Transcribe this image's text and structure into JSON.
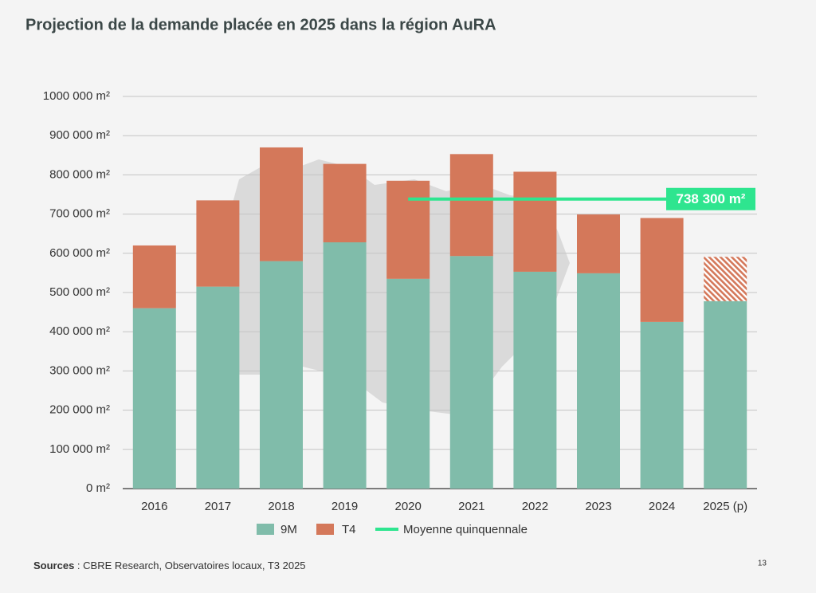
{
  "chart_data": {
    "type": "stacked-bar",
    "title": "Projection de la demande placée en 2025 dans la région AuRA",
    "categories": [
      "2016",
      "2017",
      "2018",
      "2019",
      "2020",
      "2021",
      "2022",
      "2023",
      "2024",
      "2025 (p)"
    ],
    "series": [
      {
        "name": "9M",
        "color": "#80bcaa",
        "values": [
          460000,
          515000,
          580000,
          628000,
          535000,
          593000,
          553000,
          549000,
          425000,
          478000
        ]
      },
      {
        "name": "T4",
        "color": "#d4785a",
        "values": [
          160000,
          220000,
          290000,
          200000,
          250000,
          260000,
          255000,
          150000,
          265000,
          113000
        ],
        "hatch": [
          false,
          false,
          false,
          false,
          false,
          false,
          false,
          false,
          false,
          true
        ]
      }
    ],
    "average": {
      "name": "Moyenne quinquennale",
      "color": "#2ee58f",
      "value": 738300,
      "value_label": "738 300 m²",
      "x_start": "2020"
    },
    "ylim": [
      0,
      1000000
    ],
    "yticks": [
      {
        "value": 0,
        "label": "0 m²"
      },
      {
        "value": 100000,
        "label": "100 000 m²"
      },
      {
        "value": 200000,
        "label": "200 000 m²"
      },
      {
        "value": 300000,
        "label": "300 000 m²"
      },
      {
        "value": 400000,
        "label": "400 000 m²"
      },
      {
        "value": 500000,
        "label": "500 000 m²"
      },
      {
        "value": 600000,
        "label": "600 000 m²"
      },
      {
        "value": 700000,
        "label": "700 000 m²"
      },
      {
        "value": 800000,
        "label": "800 000 m²"
      },
      {
        "value": 900000,
        "label": "900 000 m²"
      },
      {
        "value": 1000000,
        "label": "1000 000 m²"
      }
    ],
    "grid": true,
    "footer": {
      "source_label": "Sources",
      "source_text": " : CBRE Research, Observatoires locaux, T3 2025",
      "page": "13"
    }
  }
}
